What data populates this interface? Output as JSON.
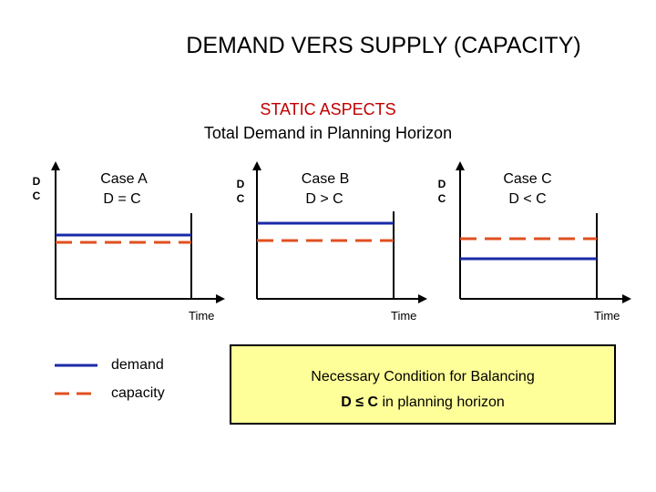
{
  "title": "DEMAND VERS SUPPLY (CAPACITY)",
  "subtitle_1": "STATIC ASPECTS",
  "subtitle_2": "Total Demand in Planning Horizon",
  "axis_label_d": "D",
  "axis_label_c": "C",
  "time_label": "Time",
  "cases": [
    {
      "name": "Case A",
      "relation": "D = C"
    },
    {
      "name": "Case B",
      "relation": "D > C"
    },
    {
      "name": "Case C",
      "relation": "D < C"
    }
  ],
  "legend": {
    "demand": "demand",
    "capacity": "capacity"
  },
  "condition": {
    "line1": "Necessary Condition for Balancing",
    "lhs": "D",
    "op": "≤",
    "rhs": "C",
    "suffix": "in planning horizon"
  },
  "colors": {
    "demand": "#1a2aa8",
    "capacity": "#e05020",
    "subtitle": "#c00000",
    "condition_box": "#ffff99"
  }
}
